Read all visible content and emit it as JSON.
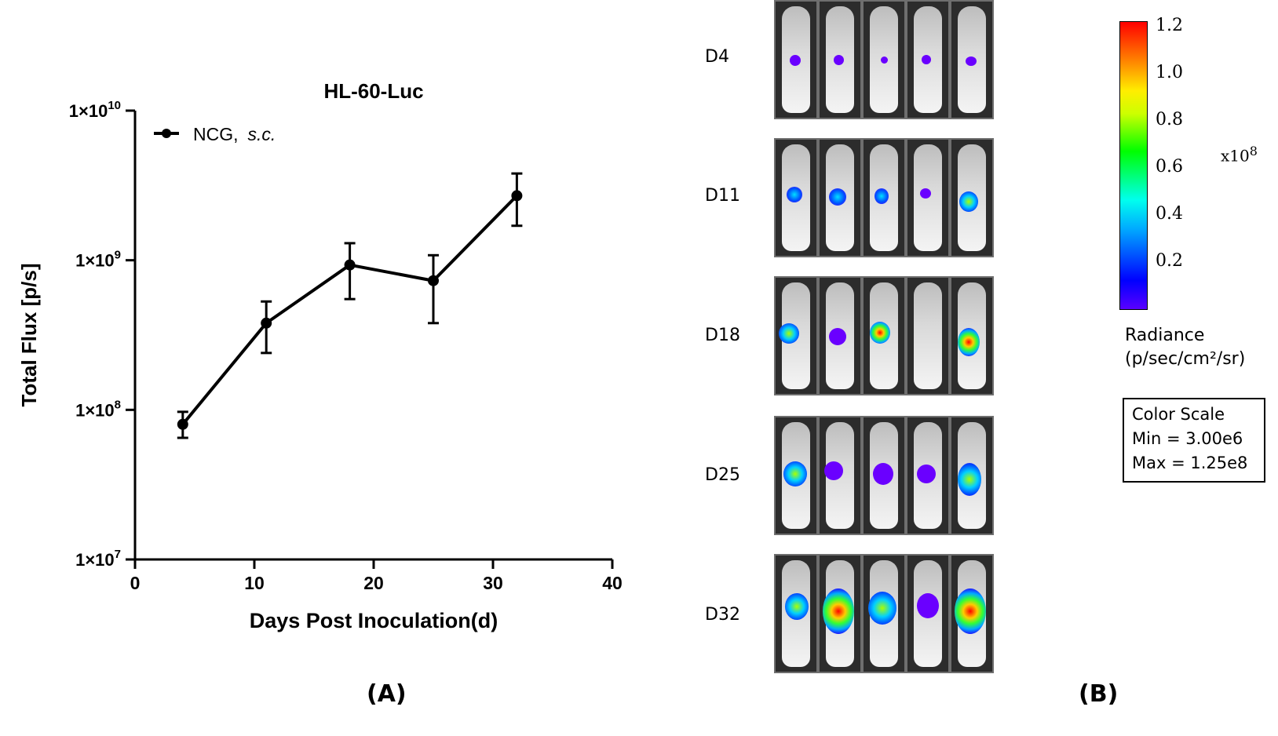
{
  "chart_data": {
    "type": "line",
    "title": "HL-60-Luc",
    "xlabel": "Days Post Inoculation(d)",
    "ylabel": "Total Flux [p/s]",
    "xlim": [
      0,
      40
    ],
    "ylim": [
      10000000,
      10000000000
    ],
    "yscale": "log",
    "x_ticks": [
      "0",
      "10",
      "20",
      "30",
      "40"
    ],
    "y_ticks": [
      {
        "base": "1×10",
        "exp": "7"
      },
      {
        "base": "1×10",
        "exp": "8"
      },
      {
        "base": "1×10",
        "exp": "9"
      },
      {
        "base": "1×10",
        "exp": "10"
      }
    ],
    "legend": {
      "name": "NCG,",
      "suffix": "s.c.",
      "position": "top-left"
    },
    "series": [
      {
        "name": "NCG, s.c.",
        "x": [
          4,
          11,
          18,
          25,
          32
        ],
        "values": [
          80000000,
          380000000,
          930000000,
          730000000,
          2700000000
        ],
        "err_low": [
          65000000,
          240000000,
          550000000,
          380000000,
          1700000000
        ],
        "err_high": [
          97000000,
          530000000,
          1300000000,
          1080000000,
          3800000000
        ]
      }
    ]
  },
  "panel_labels": {
    "a": "(A)",
    "b": "(B)"
  },
  "imaging": {
    "days": [
      "D4",
      "D11",
      "D18",
      "D25",
      "D32"
    ],
    "colorbar": {
      "ticks": [
        "1.2",
        "1.0",
        "0.8",
        "0.6",
        "0.4",
        "0.2"
      ],
      "multiplier_base": "x10",
      "multiplier_exp": "8",
      "radiance_label": "Radiance",
      "radiance_units": "(p/sec/cm²/sr)",
      "scale_title": "Color Scale",
      "scale_min": "Min = 3.00e6",
      "scale_max": "Max = 1.25e8"
    }
  }
}
